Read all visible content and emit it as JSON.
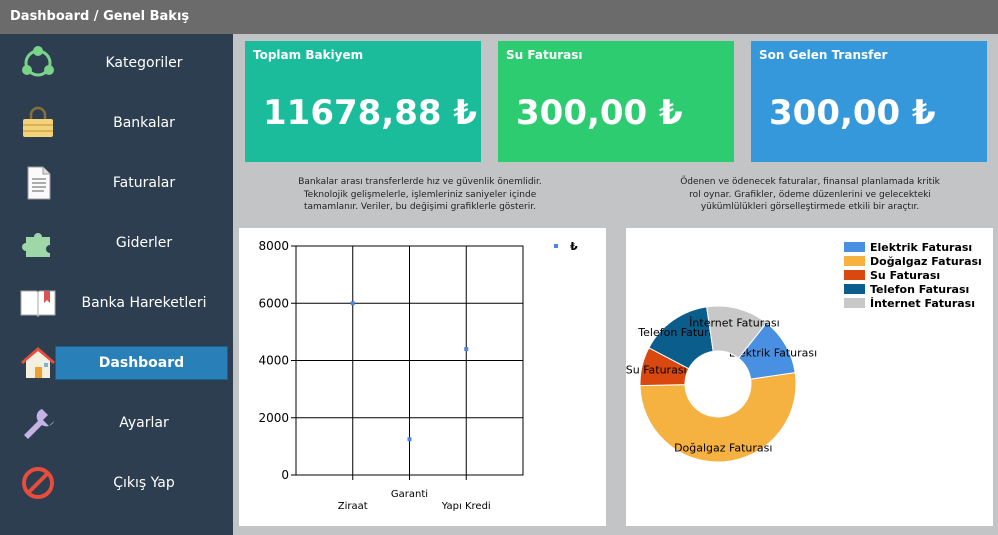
{
  "window": {
    "title": "Dashboard / Genel Bakış"
  },
  "sidebar": {
    "items": [
      {
        "label": "Kategoriler",
        "icon": "categories-icon"
      },
      {
        "label": "Bankalar",
        "icon": "wallet-icon"
      },
      {
        "label": "Faturalar",
        "icon": "document-icon"
      },
      {
        "label": "Giderler",
        "icon": "puzzle-icon"
      },
      {
        "label": "Banka Hareketleri",
        "icon": "book-icon"
      },
      {
        "label": "Dashboard",
        "icon": "home-icon",
        "active": true
      },
      {
        "label": "Ayarlar",
        "icon": "wrench-icon"
      },
      {
        "label": "Çıkış Yap",
        "icon": "exit-icon"
      }
    ]
  },
  "cards": [
    {
      "title": "Toplam Bakiyem",
      "value": "11678,88 ₺",
      "color": "#1abc9c"
    },
    {
      "title": "Su Faturası",
      "value": "300,00 ₺",
      "color": "#2ecc71"
    },
    {
      "title": "Son Gelen Transfer",
      "value": "300,00 ₺",
      "color": "#3498db"
    }
  ],
  "descriptions": {
    "left": [
      "Bankalar arası transferlerde hız ve güvenlik önemlidir.",
      "Teknolojik gelişmelerle, işlemleriniz saniyeler içinde",
      "tamamlanır. Veriler, bu değişimi grafiklerle gösterir."
    ],
    "right": [
      "Ödenen ve ödenecek faturalar, finansal planlamada kritik",
      "rol oynar. Grafikler, ödeme düzenlerini ve gelecekteki",
      "yükümlülükleri görselleştirmede etkili bir araçtır."
    ]
  },
  "chart_data": [
    {
      "type": "scatter",
      "categories": [
        "Ziraat",
        "Garanti",
        "Yapı Kredi"
      ],
      "values": [
        6000,
        1250,
        4400
      ],
      "series_name": "₺",
      "ylim": [
        0,
        8000
      ],
      "yticks": [
        0,
        2000,
        4000,
        6000,
        8000
      ],
      "color": "#4a86e8"
    },
    {
      "type": "pie",
      "donut": true,
      "slices": [
        {
          "label": "Elektrik Faturası",
          "value": 12,
          "color": "#4a90e2"
        },
        {
          "label": "Doğalgaz Faturası",
          "value": 52,
          "color": "#f6b240"
        },
        {
          "label": "Su Faturası",
          "value": 8,
          "color": "#d9480f"
        },
        {
          "label": "Telefon Faturası",
          "value": 15,
          "color": "#0b5d8c"
        },
        {
          "label": "İnternet Faturası",
          "value": 13,
          "color": "#c8c8c8"
        }
      ],
      "legend_order": [
        0,
        1,
        2,
        3,
        4
      ]
    }
  ]
}
